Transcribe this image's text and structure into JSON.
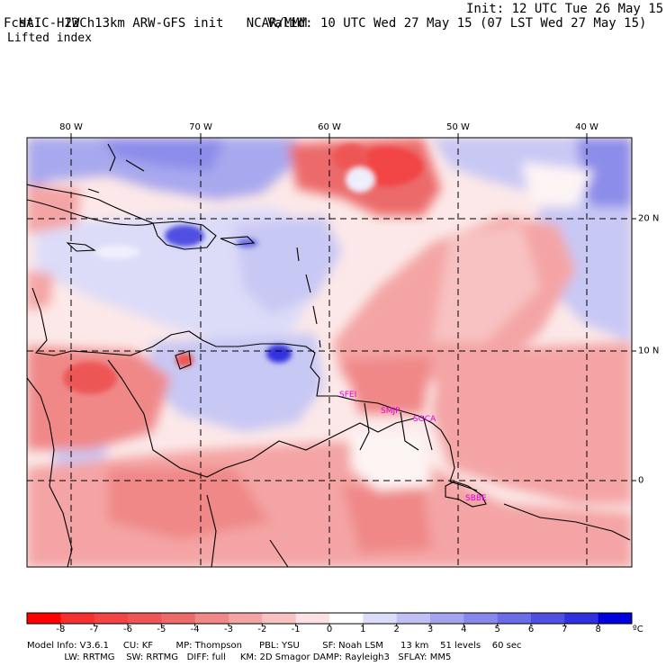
{
  "header": {
    "title": "HAIC-HIWC 13km ARW-GFS init",
    "org": "NCAR/MMM",
    "init": "Init: 12 UTC Tue 26 May 15",
    "fcst_label": "Fcst:",
    "fcst_value": "22 h",
    "valid": "Valid: 10 UTC Wed 27 May 15 (07 LST Wed 27 May 15)",
    "field": "Lifted index"
  },
  "map": {
    "lon_labels": [
      "80 W",
      "70 W",
      "60 W",
      "50 W",
      "40 W"
    ],
    "lat_labels": [
      "20 N",
      "10 N",
      "0"
    ],
    "stations": [
      "SFEI",
      "SMJP",
      "SOCA",
      "SBBE"
    ],
    "colors": {
      "neg8": "#ff0000",
      "neg7": "#f43c3c",
      "neg6": "#f05050",
      "neg5": "#ec6868",
      "neg4": "#f08080",
      "neg3": "#f4a0a0",
      "neg2": "#f8c0c0",
      "neg1": "#fcdede",
      "zero": "#ffffff",
      "pos1": "#e6e6fa",
      "pos2": "#c8c8f4",
      "pos3": "#a8a8ee",
      "pos4": "#8c8cea",
      "pos5": "#7070e6",
      "pos6": "#5050e2",
      "pos7": "#3030e0",
      "pos8": "#0000dc",
      "station": "#e000e0"
    }
  },
  "colorbar": {
    "labels": [
      "-8",
      "-7",
      "-6",
      "-5",
      "-4",
      "-3",
      "-2",
      "-1",
      "0",
      "1",
      "2",
      "3",
      "4",
      "5",
      "6",
      "7",
      "8"
    ],
    "unit": "ºC",
    "colors": [
      "#ff0000",
      "#f63030",
      "#f24444",
      "#ee5656",
      "#ec6a6a",
      "#f08888",
      "#f4a4a4",
      "#f8c2c2",
      "#fce2e2",
      "#ffffff",
      "#dcdcf8",
      "#c0c0f2",
      "#a4a4ee",
      "#8888ea",
      "#6c6ce6",
      "#5050e2",
      "#3030de",
      "#0000dc"
    ]
  },
  "footer": {
    "line1": "Model Info: V3.6.1     CU: KF        MP: Thompson      PBL: YSU        SF: Noah LSM      13 km    51 levels    60 sec",
    "line2": "             LW: RRTMG    SW: RRTMG   DIFF: full     KM: 2D Smagor DAMP: Rayleigh3   SFLAY: MM5"
  }
}
